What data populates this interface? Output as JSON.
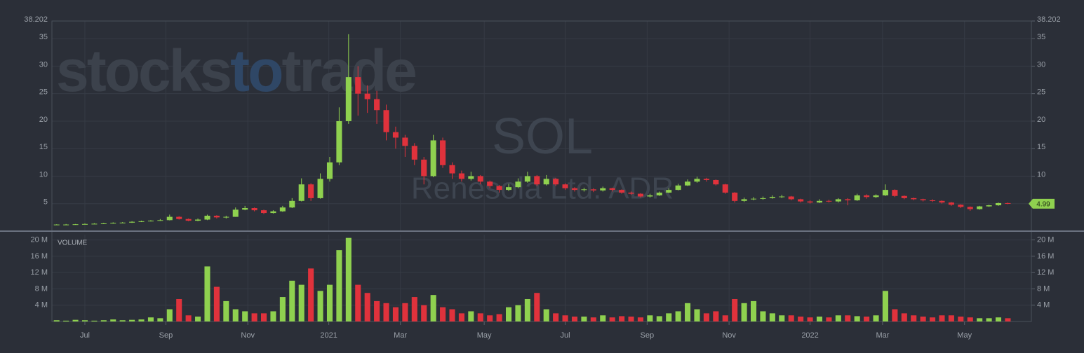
{
  "chart_data": {
    "type": "candlestick",
    "watermark_brand": [
      "stocks",
      "to",
      "trade"
    ],
    "symbol": "SOL",
    "company": "Renesola Ltd. ADR",
    "up_color": "#8fd14f",
    "down_color": "#e0323c",
    "xlim": [
      -0.5,
      103.5
    ],
    "xticks": [
      {
        "value": 3,
        "label": "Jul"
      },
      {
        "value": 11.6,
        "label": "Sep"
      },
      {
        "value": 20.3,
        "label": "Nov"
      },
      {
        "value": 28.9,
        "label": "2021"
      },
      {
        "value": 36.5,
        "label": "Mar"
      },
      {
        "value": 45.4,
        "label": "May"
      },
      {
        "value": 54,
        "label": "Jul"
      },
      {
        "value": 62.7,
        "label": "Sep"
      },
      {
        "value": 71.4,
        "label": "Nov"
      },
      {
        "value": 80,
        "label": "2022"
      },
      {
        "value": 87.7,
        "label": "Mar"
      },
      {
        "value": 96.4,
        "label": "May"
      }
    ],
    "ylim": [
      0,
      38.202
    ],
    "yticks": [
      5,
      10,
      15,
      20,
      25,
      30,
      35,
      38.202
    ],
    "grid": true,
    "open": [
      1.15,
      1.2,
      1.2,
      1.25,
      1.3,
      1.35,
      1.4,
      1.5,
      1.55,
      1.7,
      1.8,
      1.9,
      2.0,
      2.6,
      2.2,
      1.9,
      2.1,
      2.8,
      2.5,
      2.6,
      3.9,
      4.2,
      3.8,
      3.3,
      3.6,
      4.3,
      5.5,
      8.5,
      6.0,
      9.5,
      12.5,
      20.0,
      28.0,
      25.0,
      24.0,
      22.0,
      18.0,
      17.0,
      15.5,
      13.0,
      10.0,
      16.5,
      12.0,
      10.5,
      9.5,
      10.0,
      9.0,
      8.2,
      7.5,
      8.0,
      9.0,
      10.0,
      8.5,
      9.5,
      8.5,
      7.8,
      7.5,
      7.6,
      7.4,
      7.8,
      7.5,
      7.0,
      6.8,
      6.3,
      6.5,
      7.0,
      7.5,
      8.3,
      9.0,
      9.5,
      9.3,
      8.5,
      7.0,
      5.5,
      5.8,
      5.9,
      6.0,
      6.2,
      6.3,
      5.8,
      5.4,
      5.2,
      5.5,
      5.4,
      5.8,
      5.6,
      6.5,
      6.2,
      6.5,
      7.5,
      6.4,
      6.0,
      5.8,
      5.6,
      5.5,
      5.2,
      4.8,
      4.4,
      4.0,
      4.5,
      4.7,
      5.1
    ],
    "high": [
      1.25,
      1.3,
      1.3,
      1.4,
      1.45,
      1.5,
      1.6,
      1.65,
      1.8,
      1.9,
      2.0,
      2.2,
      3.0,
      2.7,
      2.3,
      2.3,
      3.0,
      2.9,
      2.8,
      4.3,
      4.6,
      4.3,
      3.9,
      3.8,
      4.6,
      6.0,
      9.6,
      8.7,
      10.5,
      13.5,
      22.5,
      35.8,
      30.0,
      26.5,
      25.5,
      23.0,
      19.0,
      17.5,
      16.0,
      13.5,
      17.5,
      17.0,
      12.5,
      11.0,
      10.8,
      10.2,
      9.2,
      8.4,
      8.6,
      9.6,
      10.8,
      10.2,
      10.2,
      9.7,
      8.7,
      8.0,
      7.9,
      7.8,
      8.1,
      7.9,
      7.6,
      7.2,
      6.9,
      6.8,
      7.2,
      7.8,
      8.6,
      9.4,
      9.9,
      9.7,
      9.4,
      8.6,
      7.1,
      6.1,
      6.2,
      6.3,
      6.5,
      6.6,
      6.4,
      5.9,
      5.6,
      5.8,
      5.7,
      6.0,
      6.0,
      6.8,
      6.7,
      6.7,
      8.5,
      7.6,
      6.5,
      6.1,
      5.9,
      5.8,
      5.6,
      5.3,
      4.9,
      4.5,
      4.6,
      4.8,
      5.2,
      5.2
    ],
    "low": [
      1.1,
      1.15,
      1.15,
      1.2,
      1.25,
      1.3,
      1.35,
      1.45,
      1.5,
      1.65,
      1.75,
      1.85,
      1.95,
      2.1,
      1.8,
      1.8,
      2.0,
      2.3,
      2.3,
      2.6,
      3.8,
      3.6,
      3.1,
      3.2,
      3.5,
      4.2,
      5.4,
      5.5,
      5.9,
      9.0,
      12.0,
      19.5,
      21.0,
      21.5,
      19.5,
      16.5,
      15.0,
      13.5,
      12.0,
      8.5,
      9.8,
      11.5,
      9.5,
      9.0,
      9.2,
      8.5,
      7.8,
      7.0,
      7.3,
      7.8,
      8.8,
      8.2,
      8.3,
      8.2,
      7.5,
      7.2,
      7.2,
      7.1,
      7.2,
      7.2,
      6.8,
      6.6,
      6.1,
      6.1,
      6.4,
      6.9,
      7.4,
      8.2,
      8.8,
      9.0,
      8.3,
      6.8,
      5.2,
      5.3,
      5.6,
      5.7,
      5.9,
      6.0,
      5.6,
      5.2,
      5.0,
      5.1,
      5.2,
      5.2,
      4.7,
      5.5,
      5.9,
      6.0,
      6.4,
      6.2,
      5.8,
      5.6,
      5.4,
      5.3,
      5.0,
      4.6,
      4.2,
      3.7,
      3.9,
      4.4,
      4.6,
      4.9
    ],
    "close": [
      1.2,
      1.2,
      1.25,
      1.3,
      1.35,
      1.4,
      1.5,
      1.55,
      1.7,
      1.8,
      1.9,
      2.0,
      2.6,
      2.2,
      1.9,
      2.1,
      2.8,
      2.5,
      2.6,
      3.9,
      4.2,
      3.8,
      3.3,
      3.6,
      4.3,
      5.5,
      8.5,
      6.0,
      9.5,
      12.5,
      20.0,
      28.0,
      25.0,
      24.0,
      22.0,
      18.0,
      17.0,
      15.5,
      13.0,
      10.0,
      16.5,
      12.0,
      10.5,
      9.5,
      10.0,
      9.0,
      8.2,
      7.5,
      8.0,
      9.0,
      10.0,
      8.5,
      9.5,
      8.5,
      7.8,
      7.5,
      7.6,
      7.4,
      7.8,
      7.5,
      7.0,
      6.8,
      6.3,
      6.5,
      7.0,
      7.5,
      8.3,
      9.0,
      9.5,
      9.3,
      8.5,
      7.0,
      5.5,
      5.8,
      5.9,
      6.0,
      6.2,
      6.3,
      5.8,
      5.4,
      5.2,
      5.5,
      5.4,
      5.8,
      5.6,
      6.5,
      6.2,
      6.5,
      7.5,
      6.4,
      6.0,
      5.8,
      5.6,
      5.5,
      5.2,
      4.8,
      4.4,
      4.0,
      4.5,
      4.7,
      5.1,
      4.99
    ],
    "volume_title": "VOLUME",
    "volume_ylim": [
      0,
      21.3
    ],
    "volume_yticks": [
      {
        "value": 4,
        "label": "4 M"
      },
      {
        "value": 8,
        "label": "8 M"
      },
      {
        "value": 12,
        "label": "12 M"
      },
      {
        "value": 16,
        "label": "16 M"
      },
      {
        "value": 20,
        "label": "20 M"
      }
    ],
    "volume": [
      0.3,
      0.2,
      0.4,
      0.3,
      0.2,
      0.3,
      0.5,
      0.3,
      0.4,
      0.5,
      1.0,
      0.8,
      3.0,
      5.5,
      1.5,
      1.2,
      13.5,
      8.5,
      5,
      3,
      2.5,
      2,
      2,
      2.5,
      6,
      10,
      9,
      13,
      7.5,
      9,
      17.5,
      20.5,
      9,
      7,
      5,
      4.5,
      3.5,
      4.5,
      6,
      4,
      6.5,
      3.5,
      3,
      2,
      2.5,
      2,
      1.5,
      1.8,
      3.5,
      4,
      5.5,
      7,
      3,
      2,
      1.5,
      1.2,
      1.2,
      1,
      1.5,
      1,
      1.3,
      1.2,
      1,
      1.5,
      1.3,
      2,
      2.5,
      4.5,
      3,
      2,
      2.5,
      1.5,
      5.5,
      4.5,
      5,
      2.5,
      2,
      1.5,
      1.5,
      1.2,
      1,
      1.2,
      1,
      1.5,
      1.5,
      1.3,
      1.2,
      1.5,
      7.5,
      3,
      2,
      1.5,
      1.2,
      1,
      1.5,
      1.5,
      1.2,
      1,
      0.8,
      0.8,
      1,
      0.8
    ]
  }
}
